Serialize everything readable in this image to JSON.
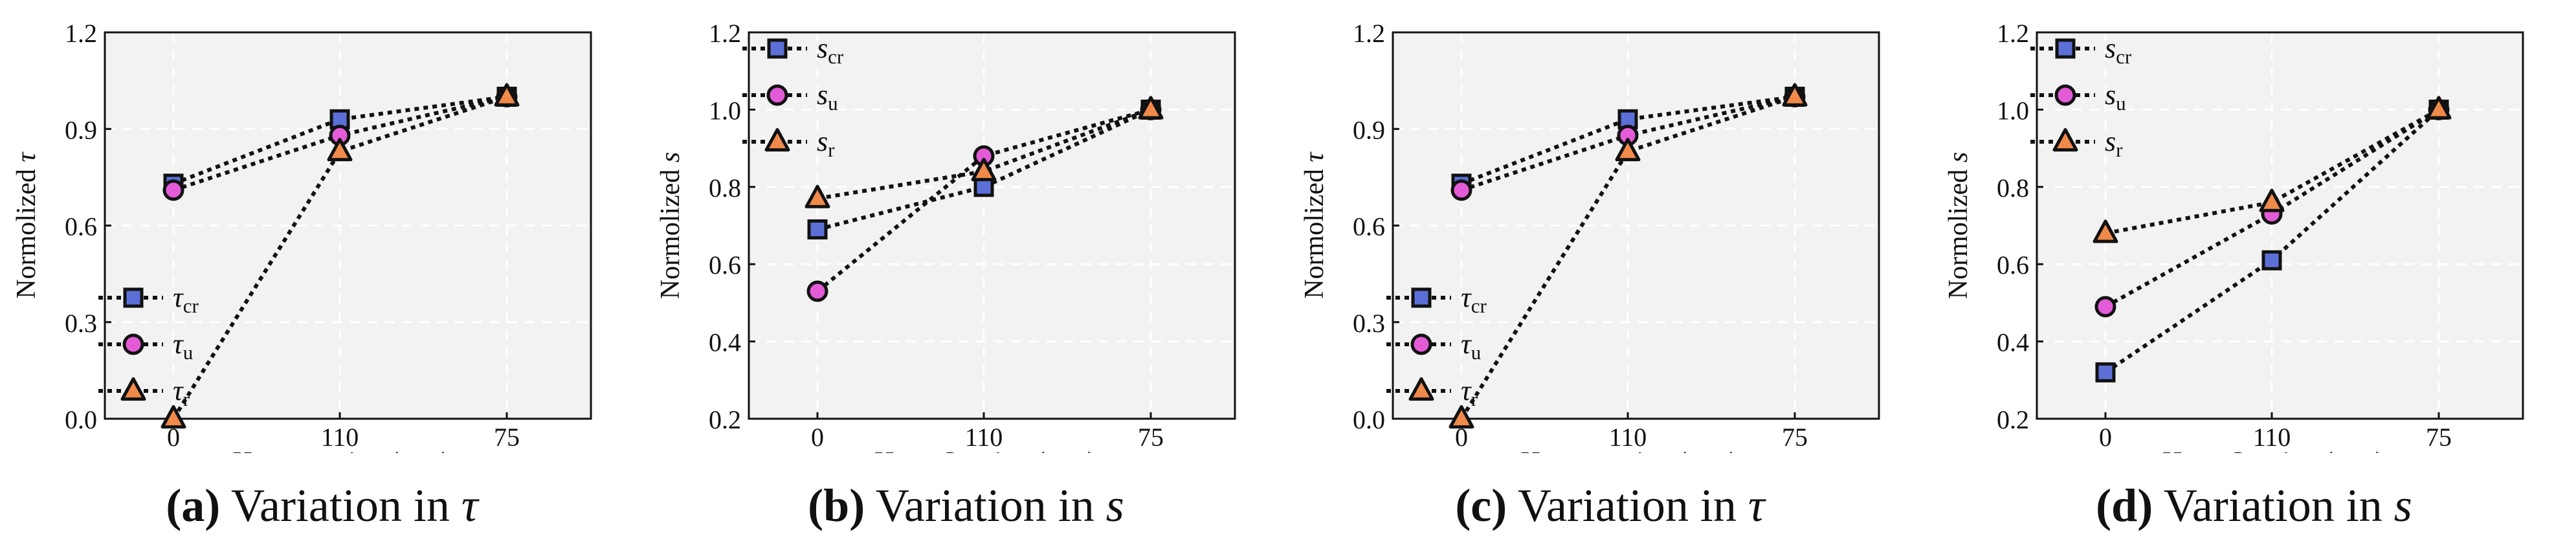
{
  "colors": {
    "square": "#5b6fd6",
    "circle": "#e35bd6",
    "triangle": "#f08a4b",
    "plot_bg": "#f2f2f2",
    "grid": "#ffffff"
  },
  "panels": [
    {
      "caption": {
        "tag": "(a)",
        "text": " Variation in ",
        "symbol": "τ"
      },
      "chart_data": {
        "type": "line",
        "categories": [
          "0",
          "110",
          "75"
        ],
        "xlabel": "Hoop spacing (mm)",
        "ylabel": {
          "prefix": "Normolized ",
          "symbol": "τ"
        },
        "ylim": [
          0,
          1.2
        ],
        "yticks": [
          "0.0",
          "0.3",
          "0.6",
          "0.9",
          "1.2"
        ],
        "legend_position": "lower-left",
        "series": [
          {
            "marker": "square",
            "name_base": "τ",
            "name_sub": "cr",
            "values": [
              0.73,
              0.93,
              1.0
            ]
          },
          {
            "marker": "circle",
            "name_base": "τ",
            "name_sub": "u",
            "values": [
              0.71,
              0.88,
              1.0
            ]
          },
          {
            "marker": "triangle",
            "name_base": "τ",
            "name_sub": "r",
            "values": [
              0.0,
              0.83,
              1.0
            ]
          }
        ]
      }
    },
    {
      "caption": {
        "tag": "(b)",
        "text": " Variation in ",
        "symbol": "s"
      },
      "chart_data": {
        "type": "line",
        "categories": [
          "0",
          "110",
          "75"
        ],
        "xlabel": "Hoop Spacing (mm)",
        "ylabel": {
          "prefix": "Normolized ",
          "symbol": "s"
        },
        "ylim": [
          0.2,
          1.2
        ],
        "yticks": [
          "0.2",
          "0.4",
          "0.6",
          "0.8",
          "1.0",
          "1.2"
        ],
        "legend_position": "upper-left",
        "series": [
          {
            "marker": "square",
            "name_base": "s",
            "name_sub": "cr",
            "values": [
              0.69,
              0.8,
              1.0
            ]
          },
          {
            "marker": "circle",
            "name_base": "s",
            "name_sub": "u",
            "values": [
              0.53,
              0.88,
              1.0
            ]
          },
          {
            "marker": "triangle",
            "name_base": "s",
            "name_sub": "r",
            "values": [
              0.77,
              0.84,
              1.0
            ]
          }
        ]
      }
    },
    {
      "caption": {
        "tag": "(c)",
        "text": " Variation in ",
        "symbol": "τ"
      },
      "chart_data": {
        "type": "line",
        "categories": [
          "0",
          "110",
          "75"
        ],
        "xlabel": "Hoop spacing (mm)",
        "ylabel": {
          "prefix": "Normolized ",
          "symbol": "τ"
        },
        "ylim": [
          0,
          1.2
        ],
        "yticks": [
          "0.0",
          "0.3",
          "0.6",
          "0.9",
          "1.2"
        ],
        "legend_position": "lower-left",
        "series": [
          {
            "marker": "square",
            "name_base": "τ",
            "name_sub": "cr",
            "values": [
              0.73,
              0.93,
              1.0
            ]
          },
          {
            "marker": "circle",
            "name_base": "τ",
            "name_sub": "u",
            "values": [
              0.71,
              0.88,
              1.0
            ]
          },
          {
            "marker": "triangle",
            "name_base": "τ",
            "name_sub": "r",
            "values": [
              0.0,
              0.83,
              1.0
            ]
          }
        ]
      }
    },
    {
      "caption": {
        "tag": "(d)",
        "text": " Variation in ",
        "symbol": "s"
      },
      "chart_data": {
        "type": "line",
        "categories": [
          "0",
          "110",
          "75"
        ],
        "xlabel": "Hoop Spacing (mm)",
        "ylabel": {
          "prefix": "Normolized ",
          "symbol": "s"
        },
        "ylim": [
          0.2,
          1.2
        ],
        "yticks": [
          "0.2",
          "0.4",
          "0.6",
          "0.8",
          "1.0",
          "1.2"
        ],
        "legend_position": "upper-left",
        "series": [
          {
            "marker": "square",
            "name_base": "s",
            "name_sub": "cr",
            "values": [
              0.32,
              0.61,
              1.0
            ]
          },
          {
            "marker": "circle",
            "name_base": "s",
            "name_sub": "u",
            "values": [
              0.49,
              0.73,
              1.0
            ]
          },
          {
            "marker": "triangle",
            "name_base": "s",
            "name_sub": "r",
            "values": [
              0.68,
              0.76,
              1.0
            ]
          }
        ]
      }
    }
  ]
}
